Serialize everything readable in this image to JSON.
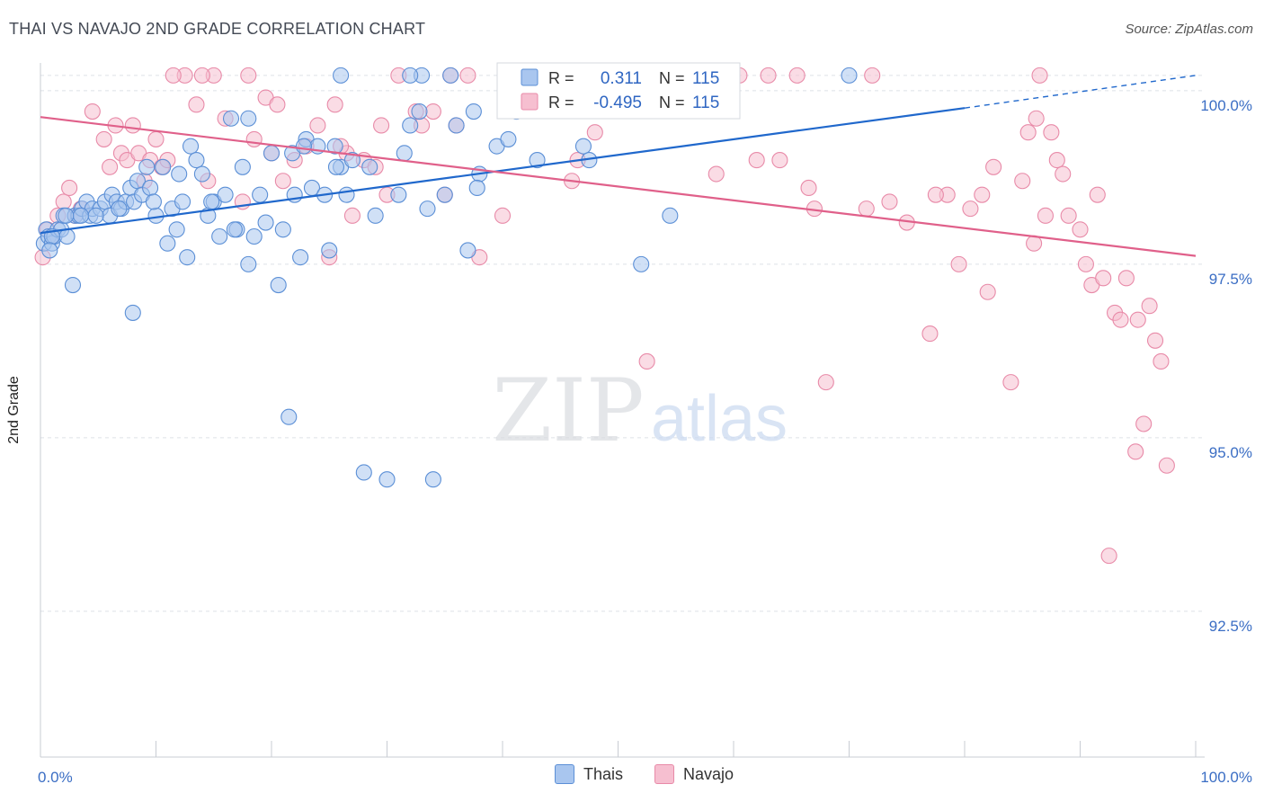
{
  "header": {
    "title": "THAI VS NAVAJO 2ND GRADE CORRELATION CHART",
    "source": "Source: ZipAtlas.com"
  },
  "watermark": {
    "zip": "ZIP",
    "atlas": "atlas"
  },
  "colors": {
    "thai": "#5b8fd6",
    "thai_fill": "#a9c6ef",
    "thai_line": "#2068cc",
    "navajo": "#e88aa8",
    "navajo_fill": "#f6bfd0",
    "navajo_line": "#e0608a",
    "axis_text": "#3b6ec4",
    "grid": "#dde1e8"
  },
  "legend": {
    "thai": {
      "r_label": "R =",
      "r_value": "0.311",
      "n_label": "N =",
      "n_value": "115"
    },
    "navajo": {
      "r_label": "R =",
      "r_value": "-0.495",
      "n_label": "N =",
      "n_value": "115"
    }
  },
  "bottom_legend": {
    "thai": "Thais",
    "navajo": "Navajo"
  },
  "chart_data": {
    "type": "scatter",
    "title": "THAI VS NAVAJO 2ND GRADE CORRELATION CHART",
    "xlabel": "",
    "ylabel": "2nd Grade",
    "xlim": [
      0,
      100
    ],
    "ylim": [
      90.4,
      100.4
    ],
    "x_tick_labels": [
      "0.0%",
      "100.0%"
    ],
    "y_ticks": [
      92.5,
      95.0,
      97.5,
      100.0
    ],
    "y_tick_labels": [
      "92.5%",
      "95.0%",
      "97.5%",
      "100.0%"
    ],
    "legend_position": "top-center",
    "grid": true,
    "series": [
      {
        "name": "Thais",
        "r": 0.311,
        "n": 115,
        "trend": {
          "x": [
            0,
            80
          ],
          "y": [
            97.95,
            99.75
          ],
          "dashed_to": [
            100,
            100.0
          ]
        },
        "points": [
          [
            0.3,
            97.8
          ],
          [
            0.5,
            98.0
          ],
          [
            0.7,
            97.9
          ],
          [
            1.0,
            97.8
          ],
          [
            1.2,
            97.9
          ],
          [
            1.5,
            98.0
          ],
          [
            1.8,
            98.0
          ],
          [
            2.0,
            98.2
          ],
          [
            2.3,
            97.9
          ],
          [
            2.8,
            97.2
          ],
          [
            3.0,
            98.2
          ],
          [
            3.3,
            98.2
          ],
          [
            3.6,
            98.3
          ],
          [
            4.0,
            98.4
          ],
          [
            4.3,
            98.2
          ],
          [
            4.5,
            98.3
          ],
          [
            5.2,
            98.3
          ],
          [
            5.6,
            98.4
          ],
          [
            6.0,
            98.2
          ],
          [
            6.2,
            98.5
          ],
          [
            6.6,
            98.4
          ],
          [
            7.0,
            98.3
          ],
          [
            7.4,
            98.4
          ],
          [
            7.8,
            98.6
          ],
          [
            8.1,
            98.4
          ],
          [
            8.4,
            98.7
          ],
          [
            8.8,
            98.5
          ],
          [
            9.2,
            98.9
          ],
          [
            9.5,
            98.6
          ],
          [
            10.0,
            98.2
          ],
          [
            10.6,
            98.9
          ],
          [
            11.0,
            97.8
          ],
          [
            11.4,
            98.3
          ],
          [
            11.8,
            98.0
          ],
          [
            12.3,
            98.4
          ],
          [
            12.7,
            97.6
          ],
          [
            13.0,
            99.2
          ],
          [
            13.5,
            99.0
          ],
          [
            14.0,
            98.8
          ],
          [
            14.5,
            98.2
          ],
          [
            15.0,
            98.4
          ],
          [
            15.5,
            97.9
          ],
          [
            16.0,
            98.5
          ],
          [
            16.5,
            99.6
          ],
          [
            17.0,
            98.0
          ],
          [
            17.5,
            98.9
          ],
          [
            18.0,
            97.5
          ],
          [
            18.5,
            97.9
          ],
          [
            19.0,
            98.5
          ],
          [
            19.5,
            98.1
          ],
          [
            20.0,
            99.1
          ],
          [
            20.6,
            97.2
          ],
          [
            21.0,
            98.0
          ],
          [
            21.5,
            95.3
          ],
          [
            22.0,
            98.5
          ],
          [
            22.5,
            97.6
          ],
          [
            23.0,
            99.3
          ],
          [
            23.5,
            98.6
          ],
          [
            24.0,
            99.2
          ],
          [
            24.6,
            98.5
          ],
          [
            25.0,
            97.7
          ],
          [
            25.5,
            99.2
          ],
          [
            26.0,
            98.9
          ],
          [
            26.5,
            98.5
          ],
          [
            27.0,
            99.0
          ],
          [
            28.0,
            94.5
          ],
          [
            29.0,
            98.2
          ],
          [
            30.0,
            94.4
          ],
          [
            31.0,
            98.5
          ],
          [
            32.0,
            99.5
          ],
          [
            32.8,
            99.7
          ],
          [
            33.5,
            98.3
          ],
          [
            34.0,
            94.4
          ],
          [
            35.0,
            98.5
          ],
          [
            36.0,
            99.5
          ],
          [
            37.0,
            97.7
          ],
          [
            37.5,
            99.7
          ],
          [
            38.0,
            98.8
          ],
          [
            39.5,
            99.2
          ],
          [
            40.5,
            99.3
          ],
          [
            41.2,
            99.7
          ],
          [
            42.0,
            99.8
          ],
          [
            45.0,
            99.9
          ],
          [
            47.0,
            99.2
          ],
          [
            47.5,
            99.0
          ],
          [
            52.0,
            97.5
          ],
          [
            54.5,
            98.2
          ],
          [
            57.0,
            99.9
          ],
          [
            70.0,
            100.0
          ],
          [
            18.0,
            99.6
          ],
          [
            8.0,
            96.8
          ],
          [
            3.5,
            98.2
          ],
          [
            2.2,
            98.2
          ],
          [
            6.8,
            98.3
          ],
          [
            9.8,
            98.4
          ],
          [
            12.0,
            98.8
          ],
          [
            14.8,
            98.4
          ],
          [
            16.8,
            98.0
          ],
          [
            21.8,
            99.1
          ],
          [
            22.8,
            99.2
          ],
          [
            25.6,
            98.9
          ],
          [
            28.5,
            98.9
          ],
          [
            31.5,
            99.1
          ],
          [
            37.8,
            98.6
          ],
          [
            43.0,
            99.0
          ],
          [
            33.0,
            100.0
          ],
          [
            35.5,
            100.0
          ],
          [
            41.0,
            100.0
          ],
          [
            46.0,
            100.0
          ],
          [
            26.0,
            100.0
          ],
          [
            32.0,
            100.0
          ],
          [
            43.5,
            100.0
          ],
          [
            1.0,
            97.9
          ],
          [
            0.8,
            97.7
          ],
          [
            4.8,
            98.2
          ]
        ]
      },
      {
        "name": "Navajo",
        "r": -0.495,
        "n": 115,
        "trend": {
          "x": [
            0,
            100
          ],
          "y": [
            99.62,
            97.62
          ]
        },
        "points": [
          [
            0.2,
            97.6
          ],
          [
            0.6,
            98.0
          ],
          [
            1.0,
            97.9
          ],
          [
            1.5,
            98.2
          ],
          [
            2.0,
            98.4
          ],
          [
            2.5,
            98.6
          ],
          [
            3.0,
            98.2
          ],
          [
            3.5,
            98.3
          ],
          [
            4.5,
            99.7
          ],
          [
            5.5,
            99.3
          ],
          [
            6.0,
            98.9
          ],
          [
            6.5,
            99.5
          ],
          [
            7.0,
            99.1
          ],
          [
            7.5,
            99.0
          ],
          [
            8.0,
            99.5
          ],
          [
            8.5,
            99.1
          ],
          [
            9.0,
            98.7
          ],
          [
            9.5,
            99.0
          ],
          [
            10.0,
            99.3
          ],
          [
            10.5,
            98.9
          ],
          [
            11.0,
            99.0
          ],
          [
            12.5,
            100.0
          ],
          [
            13.5,
            99.8
          ],
          [
            14.5,
            98.7
          ],
          [
            15.0,
            100.0
          ],
          [
            16.0,
            99.6
          ],
          [
            17.5,
            98.4
          ],
          [
            18.5,
            99.3
          ],
          [
            19.5,
            99.9
          ],
          [
            20.0,
            99.1
          ],
          [
            21.0,
            98.7
          ],
          [
            22.0,
            99.0
          ],
          [
            23.0,
            99.2
          ],
          [
            24.0,
            99.5
          ],
          [
            25.0,
            97.6
          ],
          [
            25.5,
            99.8
          ],
          [
            26.5,
            99.1
          ],
          [
            27.0,
            98.2
          ],
          [
            28.0,
            99.0
          ],
          [
            29.0,
            98.9
          ],
          [
            30.0,
            98.5
          ],
          [
            31.0,
            100.0
          ],
          [
            32.5,
            99.7
          ],
          [
            34.0,
            99.7
          ],
          [
            35.0,
            98.5
          ],
          [
            36.0,
            99.5
          ],
          [
            37.0,
            100.0
          ],
          [
            38.0,
            97.6
          ],
          [
            40.0,
            98.2
          ],
          [
            41.5,
            99.9
          ],
          [
            44.0,
            100.0
          ],
          [
            46.0,
            98.7
          ],
          [
            46.5,
            99.0
          ],
          [
            48.0,
            99.4
          ],
          [
            51.0,
            100.0
          ],
          [
            52.5,
            96.1
          ],
          [
            58.0,
            100.0
          ],
          [
            60.5,
            100.0
          ],
          [
            62.0,
            99.0
          ],
          [
            64.0,
            99.0
          ],
          [
            65.5,
            100.0
          ],
          [
            66.5,
            98.6
          ],
          [
            67.0,
            98.3
          ],
          [
            68.0,
            95.8
          ],
          [
            72.0,
            100.0
          ],
          [
            73.5,
            98.4
          ],
          [
            75.0,
            98.1
          ],
          [
            77.0,
            96.5
          ],
          [
            78.5,
            98.5
          ],
          [
            79.5,
            97.5
          ],
          [
            80.5,
            98.3
          ],
          [
            81.5,
            98.5
          ],
          [
            82.0,
            97.1
          ],
          [
            84.0,
            95.8
          ],
          [
            85.0,
            98.7
          ],
          [
            85.5,
            99.4
          ],
          [
            86.0,
            97.8
          ],
          [
            86.5,
            100.0
          ],
          [
            87.0,
            98.2
          ],
          [
            87.5,
            99.4
          ],
          [
            88.0,
            99.0
          ],
          [
            88.5,
            98.8
          ],
          [
            89.0,
            98.2
          ],
          [
            90.0,
            98.0
          ],
          [
            90.5,
            97.5
          ],
          [
            91.0,
            97.2
          ],
          [
            91.5,
            98.5
          ],
          [
            92.0,
            97.3
          ],
          [
            93.0,
            96.8
          ],
          [
            94.0,
            97.3
          ],
          [
            95.0,
            96.7
          ],
          [
            96.0,
            96.9
          ],
          [
            96.5,
            96.4
          ],
          [
            97.0,
            96.1
          ],
          [
            97.5,
            94.6
          ],
          [
            92.5,
            93.3
          ],
          [
            95.5,
            95.2
          ],
          [
            94.8,
            94.8
          ],
          [
            93.5,
            96.7
          ],
          [
            63.0,
            100.0
          ],
          [
            55.0,
            100.0
          ],
          [
            49.0,
            100.0
          ],
          [
            18.0,
            100.0
          ],
          [
            14.0,
            100.0
          ],
          [
            11.5,
            100.0
          ],
          [
            33.0,
            99.5
          ],
          [
            26.0,
            99.2
          ],
          [
            20.5,
            99.8
          ],
          [
            35.5,
            100.0
          ],
          [
            29.5,
            99.5
          ],
          [
            58.5,
            98.8
          ],
          [
            71.5,
            98.3
          ],
          [
            77.5,
            98.5
          ],
          [
            82.5,
            98.9
          ],
          [
            86.2,
            99.6
          ]
        ]
      }
    ]
  }
}
